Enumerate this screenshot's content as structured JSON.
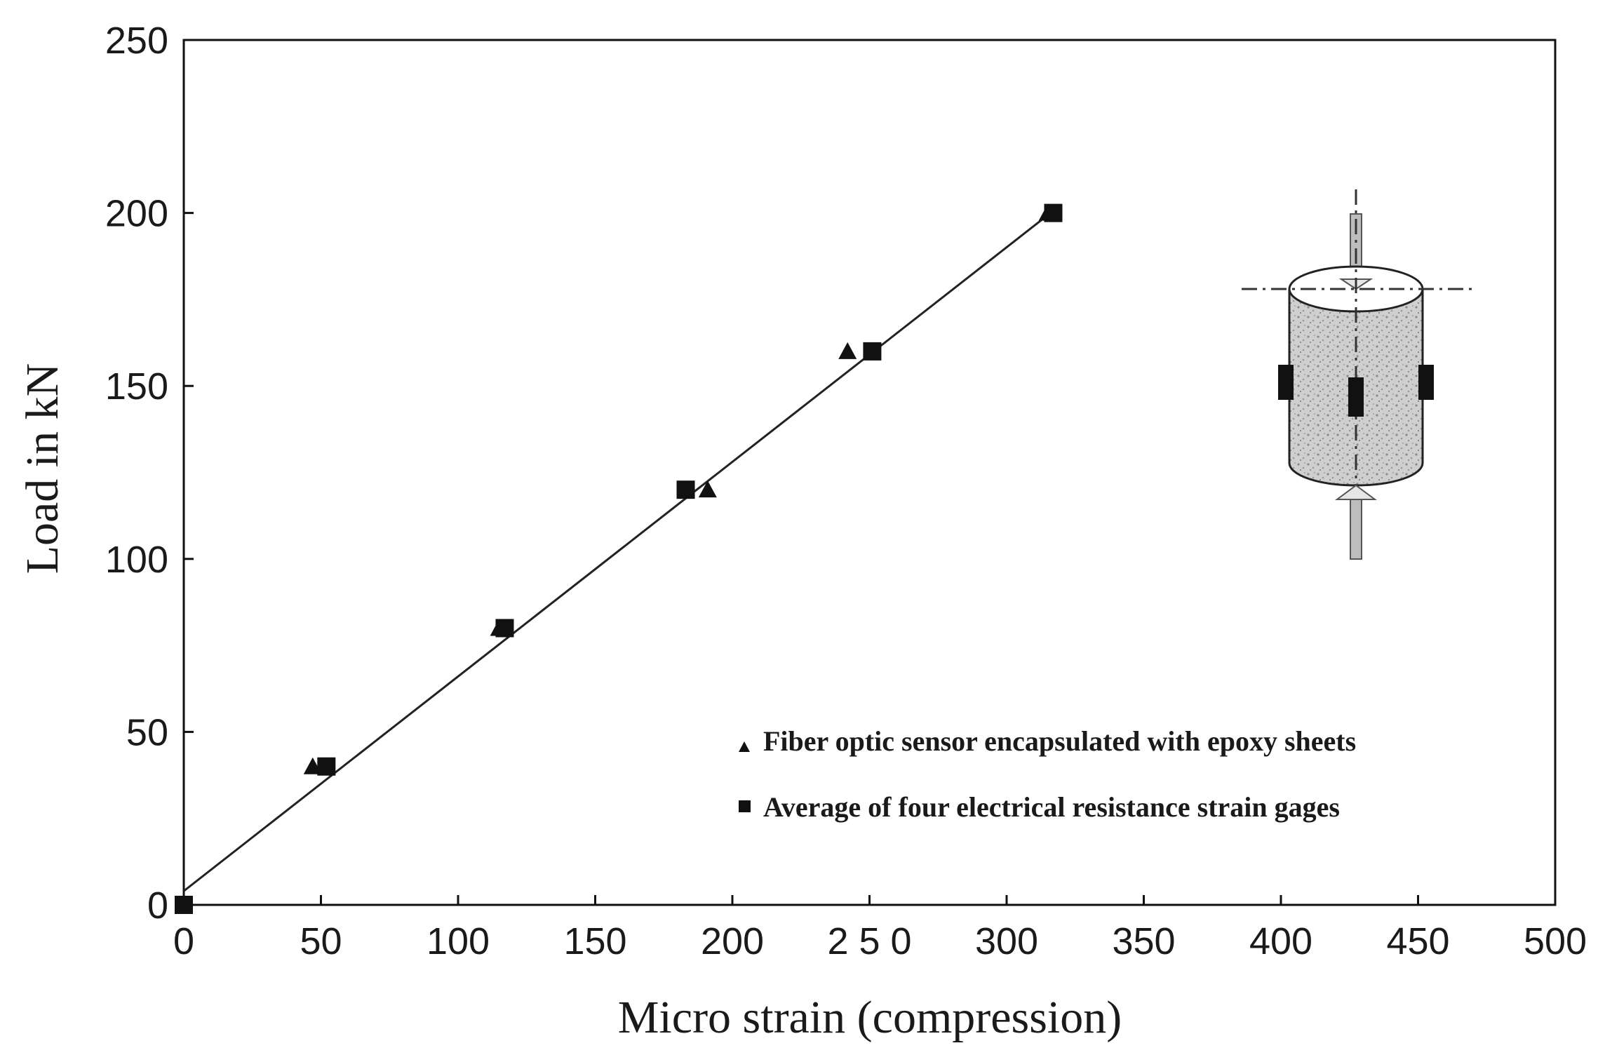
{
  "chart_data": {
    "type": "scatter",
    "xlabel": "Micro strain (compression)",
    "ylabel": "Load in kN",
    "xlim": [
      0,
      500
    ],
    "ylim": [
      0,
      250
    ],
    "x_ticks": [
      {
        "value": 0,
        "label": "0"
      },
      {
        "value": 50,
        "label": "50"
      },
      {
        "value": 100,
        "label": "100"
      },
      {
        "value": 150,
        "label": "150"
      },
      {
        "value": 200,
        "label": "200"
      },
      {
        "value": 250,
        "label": "2 5 0"
      },
      {
        "value": 300,
        "label": "300"
      },
      {
        "value": 350,
        "label": "350"
      },
      {
        "value": 400,
        "label": "400"
      },
      {
        "value": 450,
        "label": "450"
      },
      {
        "value": 500,
        "label": "500"
      }
    ],
    "y_ticks": [
      {
        "value": 0,
        "label": "0"
      },
      {
        "value": 50,
        "label": "50"
      },
      {
        "value": 100,
        "label": "100"
      },
      {
        "value": 150,
        "label": "150"
      },
      {
        "value": 200,
        "label": "200"
      },
      {
        "value": 250,
        "label": "250"
      }
    ],
    "grid": false,
    "legend_position": "bottom-right",
    "series": [
      {
        "name": "Fiber optic sensor encapsulated with epoxy sheets",
        "marker": "triangle",
        "color": "#111111",
        "points": [
          [
            0,
            0
          ],
          [
            47,
            40
          ],
          [
            115,
            80
          ],
          [
            191,
            120
          ],
          [
            242,
            160
          ],
          [
            315,
            200
          ]
        ]
      },
      {
        "name": "Average of four electrical resistance strain gages",
        "marker": "square",
        "color": "#111111",
        "points": [
          [
            0,
            0
          ],
          [
            52,
            40
          ],
          [
            117,
            80
          ],
          [
            183,
            120
          ],
          [
            251,
            160
          ],
          [
            317,
            200
          ]
        ]
      }
    ],
    "fit_line": {
      "from": [
        0,
        4
      ],
      "to": [
        316,
        200
      ],
      "color": "#222222"
    }
  }
}
